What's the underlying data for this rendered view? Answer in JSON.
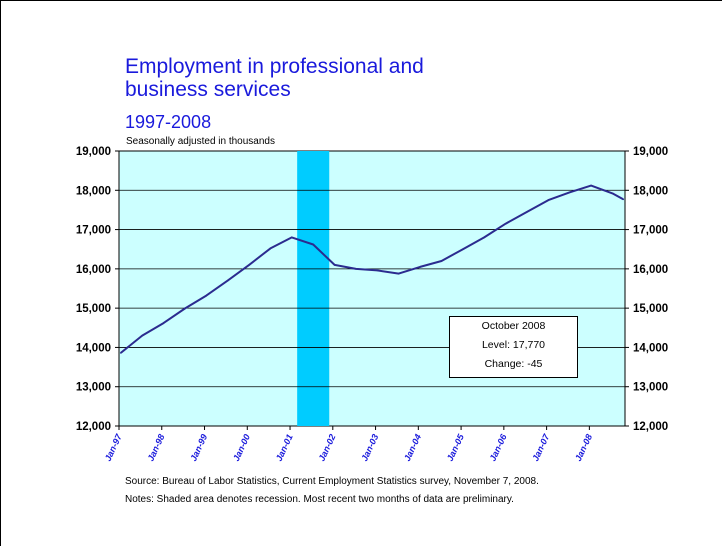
{
  "chart_data": {
    "type": "line",
    "title": "Employment in professional and business services",
    "title_lines": [
      "Employment in professional and",
      "business services"
    ],
    "subtitle": "1997-2008",
    "ylabel": "Seasonally adjusted in thousands",
    "ylim": [
      12000,
      19000
    ],
    "yticks": [
      "12,000",
      "13,000",
      "14,000",
      "15,000",
      "16,000",
      "17,000",
      "18,000",
      "19,000"
    ],
    "ytick_values": [
      12000,
      13000,
      14000,
      15000,
      16000,
      17000,
      18000,
      19000
    ],
    "xlim": [
      "1997-01",
      "2008-10"
    ],
    "xticks": [
      "Jan-97",
      "Jan-98",
      "Jan-99",
      "Jan-00",
      "Jan-01",
      "Jan-02",
      "Jan-03",
      "Jan-04",
      "Jan-05",
      "Jan-06",
      "Jan-07",
      "Jan-08"
    ],
    "grid": true,
    "plot_background": "#ccffff",
    "line_color": "#2b2b8f",
    "recession_color": "#00ccff",
    "recession": [
      "2001-03",
      "2001-11"
    ],
    "series": [
      {
        "x": [
          "1997-01",
          "1997-07",
          "1998-01",
          "1998-07",
          "1999-01",
          "1999-07",
          "2000-01",
          "2000-07",
          "2001-01",
          "2001-07",
          "2002-01",
          "2002-07",
          "2003-01",
          "2003-07",
          "2004-01",
          "2004-07",
          "2005-01",
          "2005-07",
          "2006-01",
          "2006-07",
          "2007-01",
          "2007-07",
          "2008-01",
          "2008-07",
          "2008-10"
        ],
        "values": [
          13860,
          14300,
          14620,
          14990,
          15320,
          15700,
          16100,
          16520,
          16800,
          16620,
          16100,
          16000,
          15960,
          15880,
          16050,
          16200,
          16500,
          16800,
          17150,
          17450,
          17750,
          17950,
          18120,
          17920,
          17770
        ]
      }
    ],
    "annotations": {
      "callout": [
        "October 2008",
        "Level: 17,770",
        "Change: -45"
      ],
      "source": "Source:  Bureau of Labor Statistics, Current Employment Statistics survey, November 7, 2008.",
      "notes": "Notes:  Shaded area denotes recession.  Most recent two months of data are preliminary."
    }
  }
}
